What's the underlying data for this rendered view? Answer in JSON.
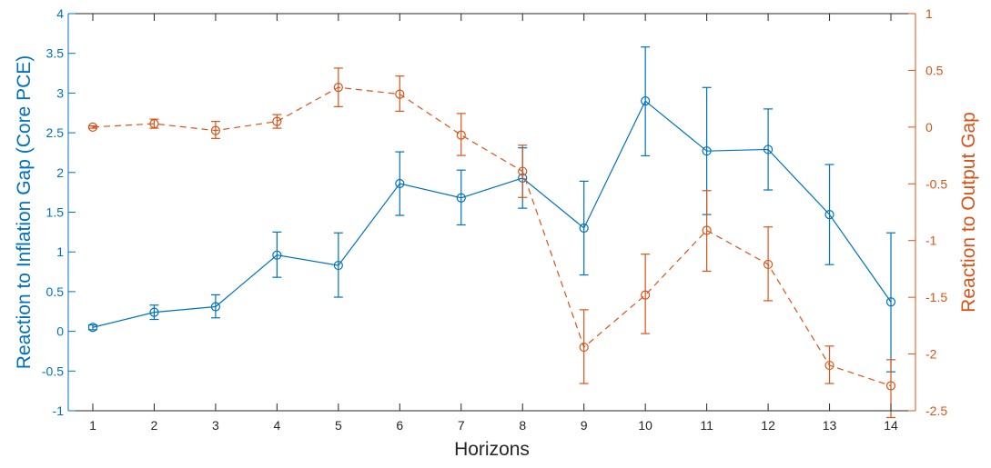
{
  "chart_data": {
    "type": "line",
    "xlabel": "Horizons",
    "ylabel_left": "Reaction to Inflation Gap (Core PCE)",
    "ylabel_right": "Reaction to Output Gap",
    "x": [
      1,
      2,
      3,
      4,
      5,
      6,
      7,
      8,
      9,
      10,
      11,
      12,
      13,
      14
    ],
    "x_ticks": [
      "1",
      "2",
      "3",
      "4",
      "5",
      "6",
      "7",
      "8",
      "9",
      "10",
      "11",
      "12",
      "13",
      "14"
    ],
    "xlim": [
      0.6,
      14.4
    ],
    "ylim_left": [
      -1,
      4
    ],
    "ylim_right": [
      -2.5,
      1
    ],
    "y_ticks_left": [
      "-1",
      "-0.5",
      "0",
      "0.5",
      "1",
      "1.5",
      "2",
      "2.5",
      "3",
      "3.5",
      "4"
    ],
    "y_ticks_right": [
      "-2.5",
      "-2",
      "-1.5",
      "-1",
      "-0.5",
      "0",
      "0.5",
      "1"
    ],
    "grid": false,
    "series": [
      {
        "axis": "left",
        "color": "#0072BD",
        "line_style": "solid",
        "marker": "circle",
        "values": [
          0.05,
          0.24,
          0.31,
          0.96,
          0.83,
          1.86,
          1.68,
          1.93,
          1.3,
          2.9,
          2.27,
          2.29,
          1.47,
          0.37
        ],
        "error_low": [
          0.02,
          0.15,
          0.17,
          0.68,
          0.43,
          1.46,
          1.34,
          1.55,
          0.71,
          2.21,
          1.47,
          1.78,
          0.84,
          -0.51
        ],
        "error_high": [
          0.08,
          0.33,
          0.46,
          1.25,
          1.24,
          2.26,
          2.03,
          2.31,
          1.89,
          3.58,
          3.07,
          2.8,
          2.1,
          1.24
        ]
      },
      {
        "axis": "right",
        "color": "#D95319",
        "line_style": "dashed",
        "marker": "circle",
        "values": [
          0.0,
          0.03,
          -0.03,
          0.05,
          0.35,
          0.29,
          -0.07,
          -0.39,
          -1.94,
          -1.48,
          -0.91,
          -1.21,
          -2.1,
          -2.28
        ],
        "error_low": [
          -0.01,
          -0.01,
          -0.1,
          -0.01,
          0.18,
          0.14,
          -0.25,
          -0.62,
          -2.26,
          -1.82,
          -1.27,
          -1.53,
          -2.26,
          -2.56
        ],
        "error_high": [
          0.01,
          0.07,
          0.05,
          0.11,
          0.52,
          0.45,
          0.12,
          -0.16,
          -1.61,
          -1.12,
          -0.56,
          -0.88,
          -1.93,
          -2.05
        ]
      }
    ]
  }
}
